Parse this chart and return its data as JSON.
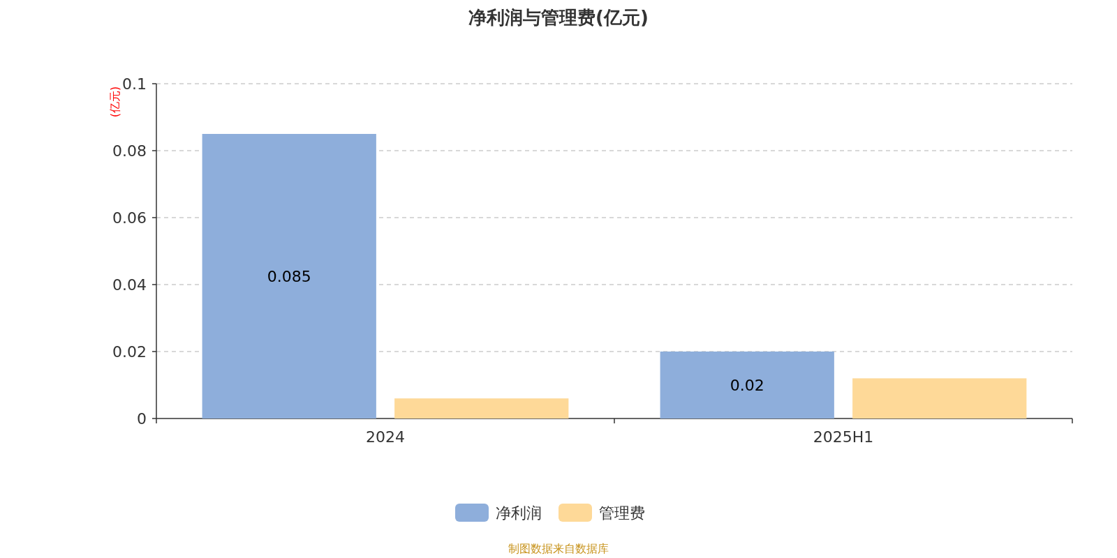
{
  "chart_data": {
    "type": "bar",
    "title": "净利润与管理费(亿元)",
    "ylabel": "(亿元)",
    "categories": [
      "2024",
      "2025H1"
    ],
    "series": [
      {
        "name": "净利润",
        "color": "#8eaedb",
        "values": [
          0.085,
          0.02
        ],
        "value_labels": [
          "0.085",
          "0.02"
        ]
      },
      {
        "name": "管理费",
        "color": "#fed998",
        "values": [
          0.006,
          0.012
        ]
      }
    ],
    "ylim": [
      0,
      0.1
    ],
    "yticks": [
      0,
      0.02,
      0.04,
      0.06,
      0.08,
      0.1
    ],
    "grid": "y",
    "legend": "bottom",
    "annotations": [
      "制图数据来自数据库"
    ]
  }
}
